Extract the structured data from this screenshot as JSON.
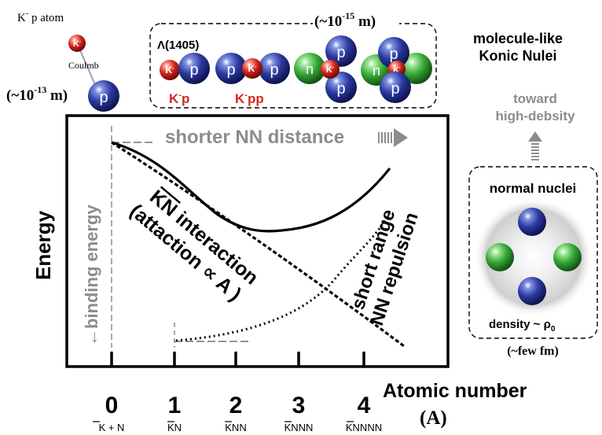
{
  "atom": {
    "title": "K",
    "title_rest": " p atom",
    "coulomb": "Coulmb",
    "size_label": "(~10",
    "size_exp": "-13",
    "size_unit": " m)"
  },
  "molecule_box": {
    "size_label": "(~10",
    "size_exp": "-15",
    "size_unit": " m)",
    "lambda_label": "Λ(1405)",
    "kp_label_k": "K",
    "kp_label_rest": "p",
    "kpp_label_k": "K",
    "kpp_label_rest": "pp"
  },
  "molecule_title": [
    "molecule-like",
    "Konic Nulei"
  ],
  "toward": [
    "toward",
    "high-debsity"
  ],
  "normal_nuclei": {
    "title": "normal nuclei",
    "density_label": "density ~ ρ",
    "density_sub": "0",
    "size_label": "(~few fm)"
  },
  "particles": {
    "proton": "p",
    "neutron": "n",
    "kaon": "K",
    "minus": "-"
  },
  "chart": {
    "ylabel": "Energy",
    "shorter_label": "shorter NN distance",
    "binding_label": "binding energy",
    "kn_lines": [
      "KN interaction",
      "(attaction ∝ A )"
    ],
    "nn_lines": [
      "short range",
      "NN repulsion"
    ],
    "xlabel": "Atomic number",
    "xunit": "(A)",
    "ticks": [
      {
        "num": "0",
        "sub": "K + N"
      },
      {
        "num": "1",
        "sub": "KN"
      },
      {
        "num": "2",
        "sub": "KNN"
      },
      {
        "num": "3",
        "sub": "KNNN"
      },
      {
        "num": "4",
        "sub": "KNNNN"
      }
    ]
  },
  "colors": {
    "proton": "#2e3f9e",
    "neutron": "#3aa63a",
    "kaon": "#d12a1f",
    "gray_text": "#8c8c8c"
  }
}
